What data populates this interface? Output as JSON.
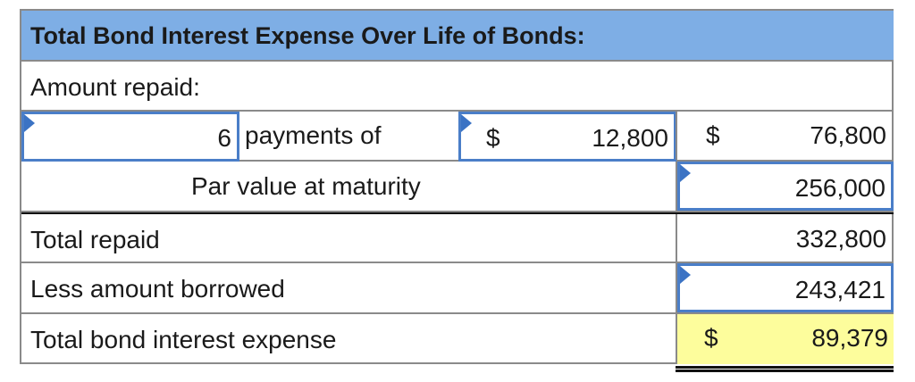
{
  "title": "Total Bond Interest Expense Over Life of Bonds:",
  "amount_repaid_label": "Amount repaid:",
  "payments": {
    "count": "6",
    "text": "payments of",
    "currency1": "$",
    "amount": "12,800",
    "currency2": "$",
    "total": "76,800"
  },
  "par_value": {
    "label": "Par value at maturity",
    "value": "256,000"
  },
  "total_repaid": {
    "label": "Total repaid",
    "value": "332,800"
  },
  "less_borrowed": {
    "label": "Less amount borrowed",
    "value": "243,421"
  },
  "interest_expense": {
    "label": "Total bond interest expense",
    "currency": "$",
    "value": "89,379"
  },
  "colors": {
    "header_bg": "#7eaee5",
    "input_border": "#4a7ec8",
    "highlight": "#fdfd9c"
  }
}
